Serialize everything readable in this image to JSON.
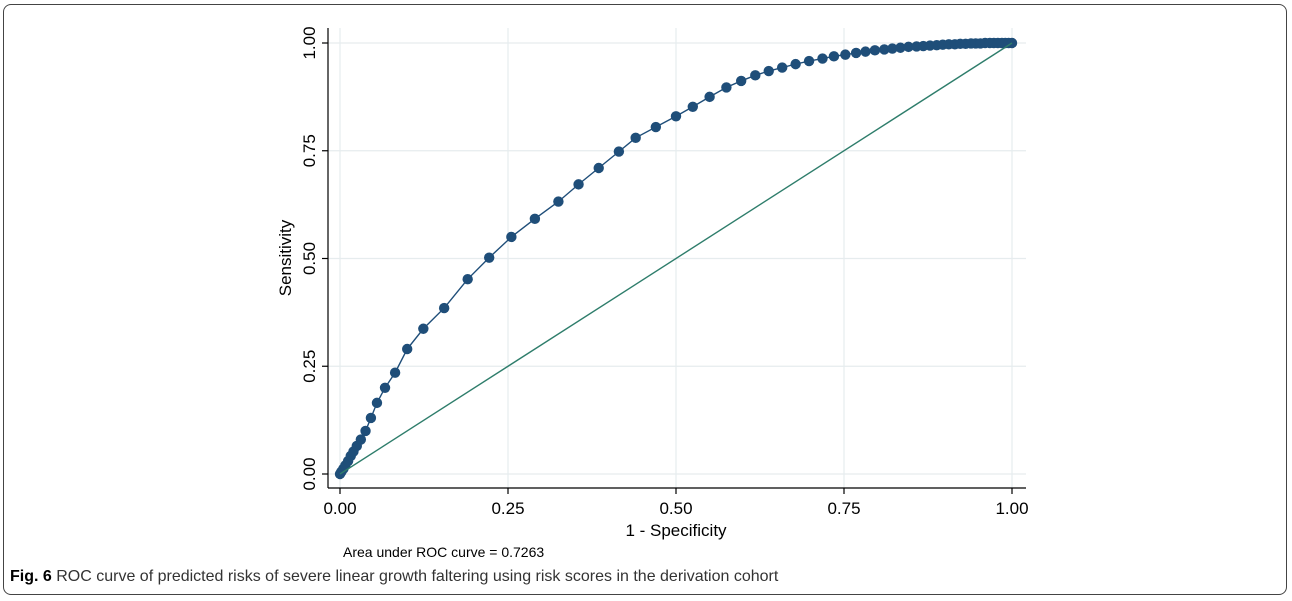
{
  "chart_data": {
    "type": "line",
    "xlabel": "1 - Specificity",
    "ylabel": "Sensitivity",
    "xlim": [
      0,
      1
    ],
    "ylim": [
      0,
      1
    ],
    "xticks": [
      "0.00",
      "0.25",
      "0.50",
      "0.75",
      "1.00"
    ],
    "yticks": [
      "0.00",
      "0.25",
      "0.50",
      "0.75",
      "1.00"
    ],
    "grid": true,
    "series": [
      {
        "style": "markers-line",
        "color": "#1f4e79",
        "x": [
          0.0,
          0.002,
          0.005,
          0.008,
          0.012,
          0.016,
          0.02,
          0.025,
          0.031,
          0.038,
          0.046,
          0.055,
          0.067,
          0.082,
          0.1,
          0.124,
          0.155,
          0.19,
          0.222,
          0.255,
          0.29,
          0.325,
          0.355,
          0.385,
          0.415,
          0.44,
          0.47,
          0.5,
          0.525,
          0.55,
          0.575,
          0.597,
          0.618,
          0.638,
          0.658,
          0.678,
          0.698,
          0.718,
          0.735,
          0.752,
          0.768,
          0.782,
          0.796,
          0.81,
          0.822,
          0.834,
          0.846,
          0.858,
          0.868,
          0.878,
          0.888,
          0.897,
          0.906,
          0.915,
          0.923,
          0.931,
          0.939,
          0.946,
          0.953,
          0.96,
          0.967,
          0.973,
          0.979,
          0.985,
          0.99,
          0.995,
          1.0
        ],
        "y": [
          0.0,
          0.005,
          0.012,
          0.02,
          0.03,
          0.042,
          0.052,
          0.065,
          0.08,
          0.1,
          0.13,
          0.165,
          0.2,
          0.235,
          0.29,
          0.337,
          0.385,
          0.452,
          0.502,
          0.55,
          0.592,
          0.632,
          0.672,
          0.71,
          0.748,
          0.78,
          0.805,
          0.83,
          0.852,
          0.875,
          0.897,
          0.912,
          0.925,
          0.935,
          0.943,
          0.951,
          0.958,
          0.964,
          0.969,
          0.973,
          0.977,
          0.98,
          0.983,
          0.985,
          0.987,
          0.989,
          0.991,
          0.992,
          0.993,
          0.994,
          0.995,
          0.996,
          0.997,
          0.997,
          0.998,
          0.998,
          0.999,
          0.999,
          0.999,
          1.0,
          1.0,
          1.0,
          1.0,
          1.0,
          1.0,
          1.0,
          1.0
        ]
      },
      {
        "style": "line",
        "color": "#2e7d6b",
        "x": [
          0,
          1
        ],
        "y": [
          0,
          1
        ]
      }
    ],
    "annotation": "Area under ROC curve = 0.7263"
  },
  "caption": {
    "label": "Fig. 6",
    "text": " ROC curve of predicted risks of severe linear growth faltering using risk scores in the derivation cohort"
  }
}
